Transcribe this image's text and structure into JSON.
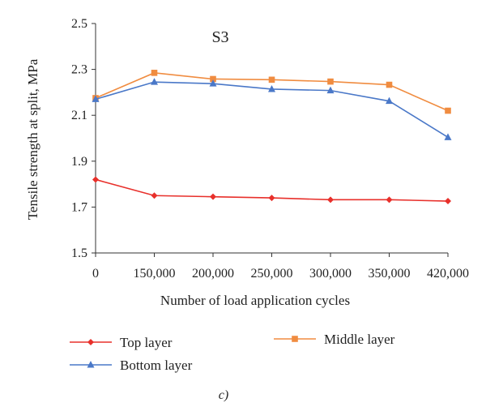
{
  "chart_data": {
    "type": "line",
    "title": "S3",
    "xlabel": "Number of load application cycles",
    "ylabel": "Tensile strength at split, MPa",
    "categories": [
      "0",
      "150,000",
      "200,000",
      "250,000",
      "300,000",
      "350,000",
      "420,000"
    ],
    "ylim": [
      1.5,
      2.5
    ],
    "yticks": [
      "1.5",
      "1.7",
      "1.9",
      "2.1",
      "2.3",
      "2.5"
    ],
    "grid": false,
    "legend_position": "bottom",
    "series": [
      {
        "name": "Top layer",
        "color": "#e8302b",
        "marker": "diamond",
        "values": [
          1.82,
          1.75,
          1.745,
          1.74,
          1.732,
          1.732,
          1.726
        ]
      },
      {
        "name": "Middle layer",
        "color": "#f08c40",
        "marker": "square",
        "values": [
          2.175,
          2.285,
          2.258,
          2.255,
          2.247,
          2.233,
          2.12
        ]
      },
      {
        "name": "Bottom layer",
        "color": "#4a78c8",
        "marker": "triangle",
        "values": [
          2.17,
          2.245,
          2.238,
          2.214,
          2.208,
          2.162,
          2.004
        ]
      }
    ],
    "caption": "c)"
  }
}
